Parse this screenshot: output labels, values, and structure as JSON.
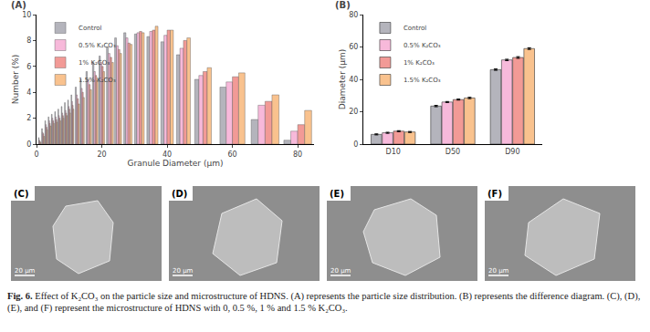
{
  "chart_data": [
    {
      "type": "bar",
      "title": "(A)",
      "x_label": "Granule Diameter (μm)",
      "y_label": "Number (%)",
      "x": [
        1,
        2,
        3,
        4,
        5,
        6,
        7,
        8,
        9,
        10,
        11,
        12.5,
        14,
        16,
        18,
        20,
        22.5,
        25,
        28,
        31.5,
        35.5,
        40,
        45,
        51,
        60,
        70,
        80
      ],
      "series": [
        {
          "name": "Control",
          "color": "#b4b4bc",
          "values": [
            0.5,
            1.2,
            1.8,
            2.1,
            2.3,
            2.5,
            2.7,
            2.9,
            3.2,
            3.4,
            3.8,
            4.4,
            5.0,
            5.6,
            6.3,
            6.8,
            7.5,
            8.2,
            8.6,
            8.5,
            8.3,
            7.9,
            6.9,
            5.0,
            4.4,
            1.9,
            0.3
          ]
        },
        {
          "name": "0.5% K₂CO₃",
          "color": "#f7b9da",
          "values": [
            0.3,
            0.9,
            1.5,
            1.8,
            2.0,
            2.1,
            2.2,
            2.4,
            2.6,
            2.9,
            3.3,
            3.8,
            4.3,
            5.0,
            5.6,
            6.3,
            7.0,
            7.6,
            8.2,
            8.6,
            8.7,
            8.4,
            7.4,
            5.3,
            4.8,
            3.0,
            1.0
          ]
        },
        {
          "name": "1% K₂CO₃",
          "color": "#f29a96",
          "values": [
            0.2,
            0.8,
            1.3,
            1.6,
            1.8,
            1.9,
            2.0,
            2.2,
            2.4,
            2.7,
            3.0,
            3.5,
            4.0,
            4.6,
            5.3,
            6.0,
            6.7,
            7.3,
            7.8,
            8.7,
            8.8,
            8.8,
            8.0,
            5.6,
            5.2,
            3.3,
            1.5
          ]
        },
        {
          "name": "1.5% K₂CO₃",
          "color": "#f9c28e",
          "values": [
            0.1,
            0.6,
            1.1,
            1.4,
            1.6,
            1.7,
            1.8,
            2.0,
            2.2,
            2.4,
            2.7,
            3.1,
            3.6,
            4.2,
            4.9,
            5.6,
            6.3,
            7.0,
            7.7,
            8.6,
            9.1,
            8.8,
            8.2,
            5.9,
            5.5,
            3.8,
            2.6
          ]
        }
      ],
      "xlim": [
        0,
        85
      ],
      "xticks": [
        0,
        20,
        40,
        60,
        80
      ],
      "ylim": [
        0,
        10
      ],
      "yticks": [
        0,
        2,
        4,
        6,
        8,
        10
      ],
      "legend": "top-left",
      "grid": false
    },
    {
      "type": "bar",
      "title": "(B)",
      "y_label": "Diameter (μm)",
      "categories": [
        "D10",
        "D50",
        "D90"
      ],
      "series": [
        {
          "name": "Control",
          "color": "#b4b4bc",
          "values": [
            6.0,
            23.5,
            46.0
          ],
          "errors": [
            0.3,
            0.4,
            0.4
          ]
        },
        {
          "name": "0.5% K₂CO₃",
          "color": "#f7b9da",
          "values": [
            7.0,
            26.0,
            52.0
          ],
          "errors": [
            0.3,
            0.3,
            0.4
          ]
        },
        {
          "name": "1% K₂CO₃",
          "color": "#f29a96",
          "values": [
            8.0,
            27.5,
            53.5
          ],
          "errors": [
            0.3,
            0.3,
            0.5
          ]
        },
        {
          "name": "1.5% K₂CO₃",
          "color": "#f9c28e",
          "values": [
            7.5,
            28.5,
            59.0
          ],
          "errors": [
            0.3,
            0.4,
            0.5
          ]
        }
      ],
      "ylim": [
        0,
        80
      ],
      "yticks": [
        0,
        20,
        40,
        60,
        80
      ],
      "legend": "top-left",
      "grid": false
    }
  ],
  "panels": [
    {
      "label": "(C)",
      "scale_bar": "20 μm"
    },
    {
      "label": "(D)",
      "scale_bar": "20 μm"
    },
    {
      "label": "(E)",
      "scale_bar": "20 μm"
    },
    {
      "label": "(F)",
      "scale_bar": "20 μm"
    }
  ],
  "caption": {
    "label": "Fig. 6.",
    "text": "Effect of K₂CO₃ on the particle size and microstructure of HDNS. (A) represents the particle size distribution. (B) represents the difference diagram. (C), (D), (E), and (F) represent the microstructure of HDNS with 0, 0.5 %, 1 % and 1.5 % K₂CO₃."
  }
}
